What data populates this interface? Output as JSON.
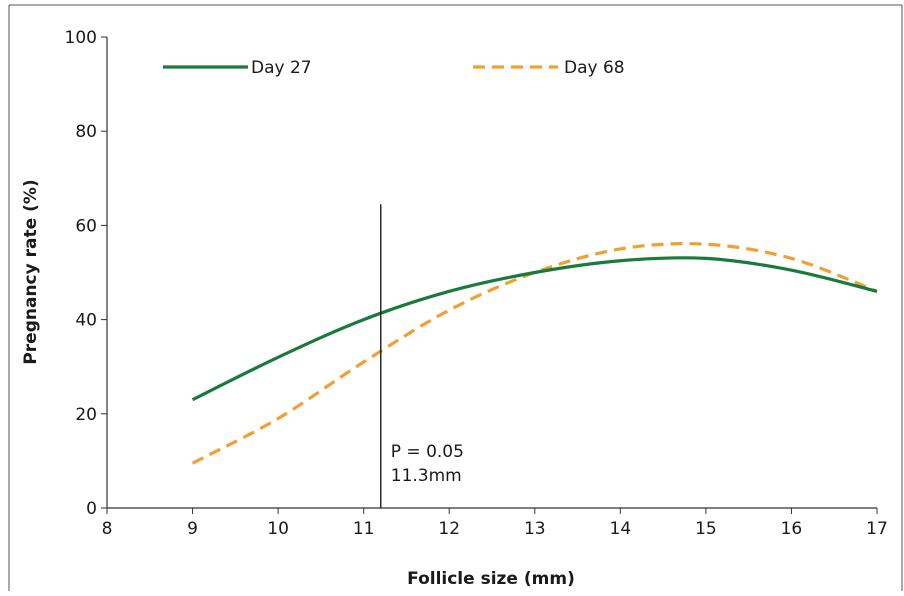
{
  "chart_data": {
    "type": "line",
    "title": "",
    "xlabel": "Follicle size (mm)",
    "ylabel": "Pregnancy rate (%)",
    "xlim": [
      8,
      17
    ],
    "ylim": [
      0,
      100
    ],
    "x_ticks": [
      8,
      9,
      10,
      11,
      12,
      13,
      14,
      15,
      16,
      17
    ],
    "y_ticks": [
      0,
      20,
      40,
      60,
      80,
      100
    ],
    "grid": false,
    "legend_position": "top",
    "series": [
      {
        "name": "Day 27",
        "color": "#1a7a3c",
        "line_style": "solid",
        "x": [
          9,
          10,
          11,
          12,
          13,
          14,
          15,
          16,
          17
        ],
        "y": [
          23,
          32,
          40,
          46,
          50,
          52.5,
          53,
          50.5,
          46
        ]
      },
      {
        "name": "Day 68",
        "color": "#f0a030",
        "line_style": "dashed",
        "x": [
          9,
          10,
          11,
          12,
          13,
          14,
          15,
          16,
          17
        ],
        "y": [
          9.5,
          19,
          31,
          42,
          50,
          55,
          56,
          53,
          46
        ]
      }
    ],
    "annotations": [
      {
        "type": "vline",
        "x": 11.2,
        "y_top": 64.5,
        "text_lines": [
          "P = 0.05",
          "11.3mm"
        ]
      }
    ]
  }
}
